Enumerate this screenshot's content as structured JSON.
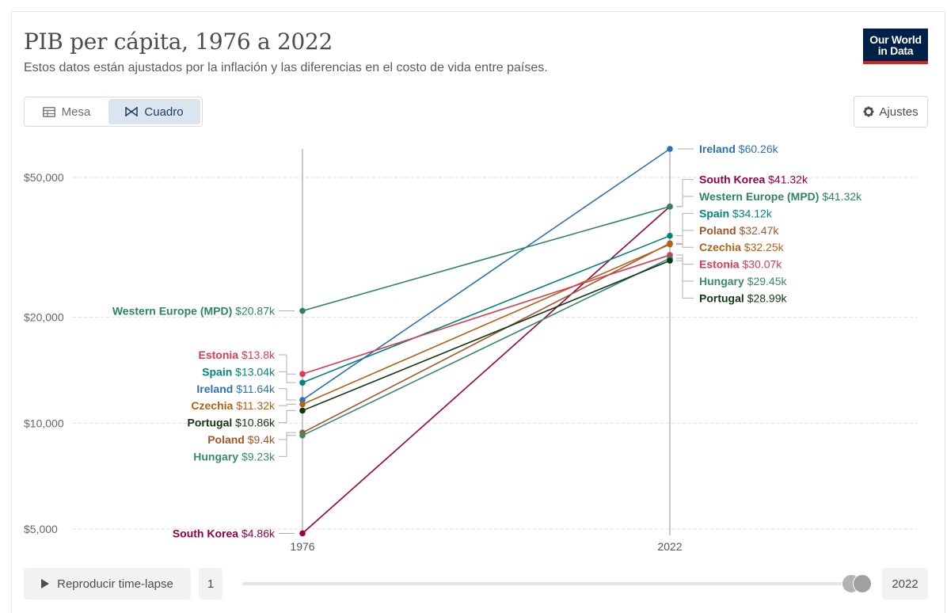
{
  "header": {
    "title": "PIB per cápita, 1976 a 2022",
    "subtitle": "Estos datos están ajustados por la inflación y las diferencias en el costo de vida entre países.",
    "logo_line1": "Our World",
    "logo_line2": "in Data"
  },
  "tabs": [
    {
      "label": "Mesa",
      "icon": "table-icon"
    },
    {
      "label": "Cuadro",
      "icon": "chart-icon",
      "active": true
    }
  ],
  "settings_label": "Ajustes",
  "timeline": {
    "play_label": "Reproducir time-lapse",
    "start_label": "1",
    "end_label": "2022"
  },
  "chart_data": {
    "type": "slope",
    "title": "PIB per cápita, 1976 a 2022",
    "x": [
      1976,
      2022
    ],
    "x_tick_labels": [
      "1976",
      "2022"
    ],
    "y_scale": "log",
    "ylim": [
      4860,
      60260
    ],
    "y_ticks": [
      5000,
      10000,
      20000,
      50000
    ],
    "y_tick_labels": [
      "$5,000",
      "$10,000",
      "$20,000",
      "$50,000"
    ],
    "grid": true,
    "series": [
      {
        "name": "Ireland",
        "color": "#2f6fb5",
        "values": [
          11640,
          60260
        ],
        "start_label": "$11.64k",
        "end_label": "$60.26k"
      },
      {
        "name": "South Korea",
        "color": "#970046",
        "values": [
          4860,
          41320
        ],
        "start_label": "$4.86k",
        "end_label": "$41.32k"
      },
      {
        "name": "Western Europe (MPD)",
        "color": "#2c8465",
        "values": [
          20870,
          41320
        ],
        "start_label": "$20.87k",
        "end_label": "$41.32k"
      },
      {
        "name": "Spain",
        "color": "#00847e",
        "values": [
          13040,
          34120
        ],
        "start_label": "$13.04k",
        "end_label": "$34.12k"
      },
      {
        "name": "Poland",
        "color": "#a2552b",
        "values": [
          9400,
          32470
        ],
        "start_label": "$9.4k",
        "end_label": "$32.47k"
      },
      {
        "name": "Czechia",
        "color": "#b16214",
        "values": [
          11320,
          32250
        ],
        "start_label": "$11.32k",
        "end_label": "$32.25k"
      },
      {
        "name": "Estonia",
        "color": "#d73c50",
        "values": [
          13800,
          30070
        ],
        "start_label": "$13.8k",
        "end_label": "$30.07k"
      },
      {
        "name": "Hungary",
        "color": "#398a6d",
        "values": [
          9230,
          29450
        ],
        "start_label": "$9.23k",
        "end_label": "$29.45k"
      },
      {
        "name": "Portugal",
        "color": "#11380f",
        "values": [
          10860,
          28990
        ],
        "start_label": "$10.86k",
        "end_label": "$28.99k"
      }
    ]
  }
}
